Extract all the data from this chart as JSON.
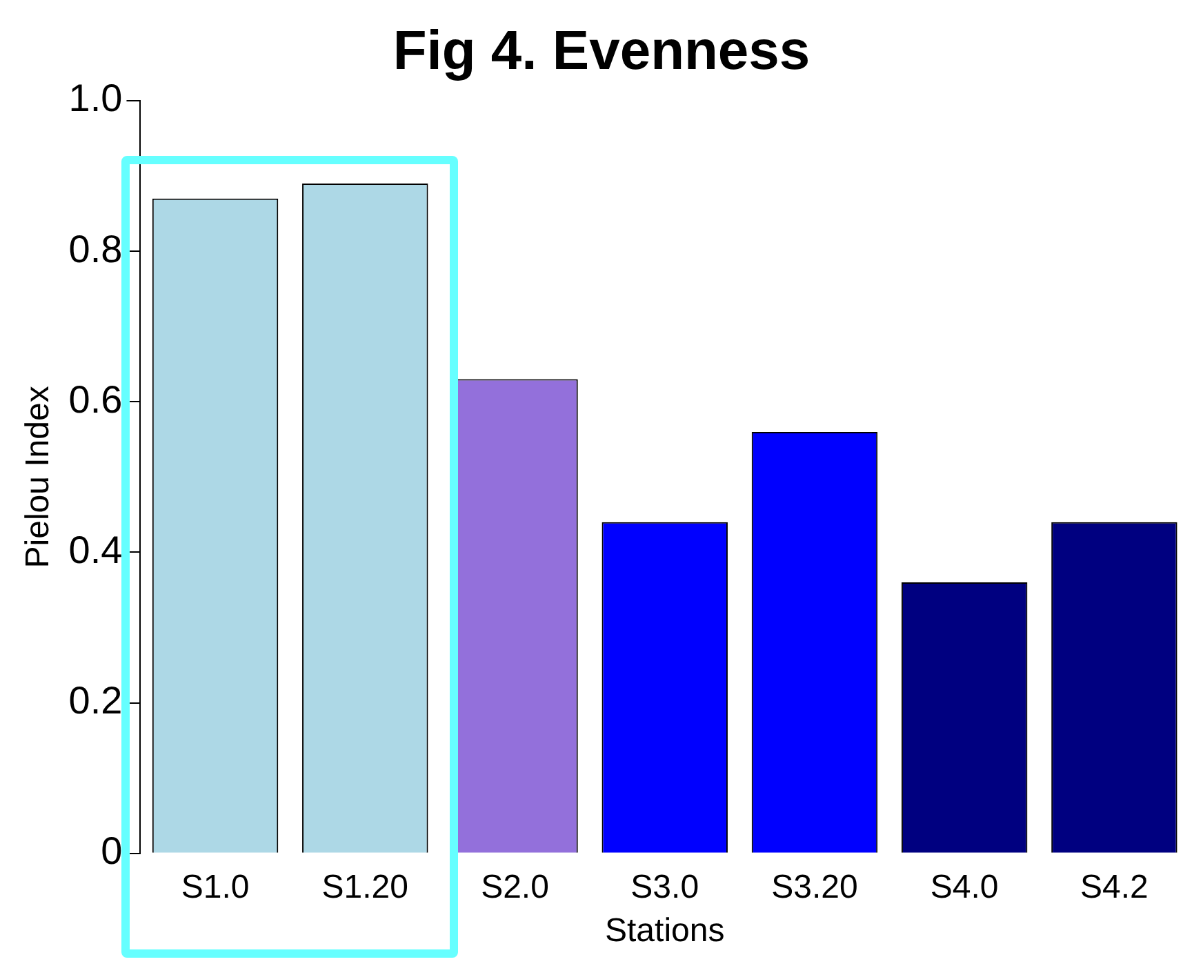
{
  "chart_data": {
    "type": "bar",
    "title": "Fig 4. Evenness",
    "xlabel": "Stations",
    "ylabel": "Pielou Index",
    "categories": [
      "S1.0",
      "S1.20",
      "S2.0",
      "S3.0",
      "S3.20",
      "S4.0",
      "S4.2"
    ],
    "values": [
      0.87,
      0.89,
      0.63,
      0.44,
      0.56,
      0.36,
      0.44
    ],
    "colors": [
      "#add8e6",
      "#add8e6",
      "#9370db",
      "#0000ff",
      "#0000ff",
      "#000080",
      "#000080"
    ],
    "ylim": [
      0,
      1
    ],
    "yticks": [
      0,
      0.2,
      0.4,
      0.6,
      0.8,
      {
        "value": 1,
        "label": "1.0"
      }
    ],
    "grid": false,
    "legend": false
  }
}
